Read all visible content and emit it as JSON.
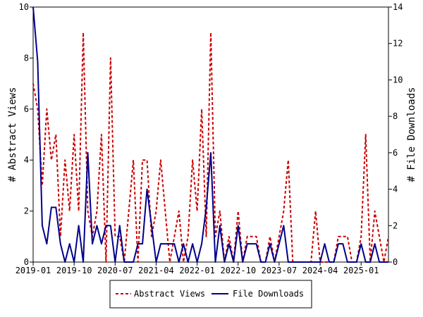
{
  "chart_data": {
    "type": "line",
    "x_ticks": [
      "2019-01",
      "2019-10",
      "2020-07",
      "2021-04",
      "2022-01",
      "2022-10",
      "2023-07",
      "2024-04",
      "2025-01"
    ],
    "y_left": {
      "label": "# Abstract Views",
      "range": [
        0,
        10
      ],
      "ticks": [
        "0",
        "2",
        "4",
        "6",
        "8",
        "10"
      ]
    },
    "y_right": {
      "label": "# File Downloads",
      "range": [
        0,
        14
      ],
      "ticks": [
        "0",
        "2",
        "4",
        "6",
        "8",
        "10",
        "12",
        "14"
      ]
    },
    "legend_position": "bottom",
    "months": [
      "2019-01",
      "2019-02",
      "2019-03",
      "2019-04",
      "2019-05",
      "2019-06",
      "2019-07",
      "2019-08",
      "2019-09",
      "2019-10",
      "2019-11",
      "2019-12",
      "2020-01",
      "2020-02",
      "2020-03",
      "2020-04",
      "2020-05",
      "2020-06",
      "2020-07",
      "2020-08",
      "2020-09",
      "2020-10",
      "2020-11",
      "2020-12",
      "2021-01",
      "2021-02",
      "2021-03",
      "2021-04",
      "2021-05",
      "2021-06",
      "2021-07",
      "2021-08",
      "2021-09",
      "2021-10",
      "2021-11",
      "2021-12",
      "2022-01",
      "2022-02",
      "2022-03",
      "2022-04",
      "2022-05",
      "2022-06",
      "2022-07",
      "2022-08",
      "2022-09",
      "2022-10",
      "2022-11",
      "2022-12",
      "2023-01",
      "2023-02",
      "2023-03",
      "2023-04",
      "2023-05",
      "2023-06",
      "2023-07",
      "2023-08",
      "2023-09",
      "2023-10",
      "2023-11",
      "2023-12",
      "2024-01",
      "2024-02",
      "2024-03",
      "2024-04",
      "2024-05",
      "2024-06",
      "2024-07",
      "2024-08",
      "2024-09",
      "2024-10",
      "2024-11",
      "2024-12",
      "2025-01",
      "2025-02",
      "2025-03",
      "2025-04",
      "2025-05",
      "2025-06",
      "2025-07"
    ],
    "series": [
      {
        "name": "Abstract Views",
        "axis": "left",
        "color": "#cc0000",
        "dash": "dashed",
        "values": [
          7,
          6,
          3,
          6,
          4,
          5,
          1,
          4,
          2,
          5,
          2,
          9,
          2,
          1,
          2,
          5,
          0,
          8,
          1,
          1,
          0,
          2,
          4,
          0,
          4,
          4,
          1,
          2,
          4,
          2,
          0,
          1,
          2,
          0,
          1,
          4,
          2,
          6,
          1,
          9,
          1,
          2,
          0,
          1,
          0,
          2,
          0,
          1,
          1,
          1,
          0,
          0,
          1,
          0,
          1,
          2,
          4,
          0,
          0,
          0,
          0,
          0,
          2,
          0,
          0,
          0,
          0,
          1,
          1,
          1,
          0,
          0,
          1,
          5,
          0,
          2,
          1,
          0,
          1
        ]
      },
      {
        "name": "File Downloads",
        "axis": "right",
        "color": "#00008b",
        "dash": "solid",
        "values": [
          14,
          11,
          2,
          1,
          3,
          3,
          1,
          0,
          1,
          0,
          2,
          0,
          6,
          1,
          2,
          1,
          2,
          2,
          0,
          2,
          0,
          0,
          0,
          1,
          1,
          4,
          2,
          0,
          1,
          1,
          1,
          1,
          0,
          1,
          0,
          1,
          0,
          1,
          3,
          6,
          0,
          2,
          0,
          1,
          0,
          2,
          0,
          1,
          1,
          1,
          0,
          0,
          1,
          0,
          1,
          2,
          0,
          0,
          0,
          0,
          0,
          0,
          0,
          0,
          1,
          0,
          0,
          1,
          1,
          0,
          0,
          0,
          1,
          0,
          0,
          1,
          0,
          0,
          0
        ]
      }
    ]
  }
}
